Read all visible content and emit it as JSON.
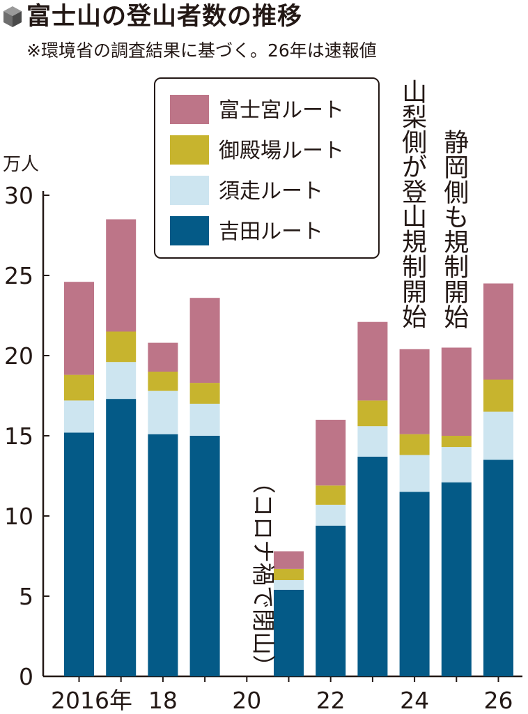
{
  "header": {
    "title": "富士山の登山者数の推移",
    "note": "※環境省の調査結果に基づく。26年は速報値"
  },
  "colors": {
    "fujinomiya": "#bd7588",
    "gotemba": "#c7b42e",
    "subashiri": "#cde5f0",
    "yoshida": "#045a87",
    "axis": "#231815"
  },
  "chart_data": {
    "type": "bar",
    "stacked": true,
    "categories": [
      "2016",
      "2017",
      "2018",
      "2019",
      "2020",
      "2021",
      "2022",
      "2023",
      "2024",
      "2025",
      "2026"
    ],
    "x_tick_labels": [
      "2016年",
      "",
      "18",
      "",
      "20",
      "",
      "22",
      "",
      "24",
      "",
      "26"
    ],
    "ylabel": "万人",
    "ylim": [
      0,
      30
    ],
    "yticks": [
      0,
      5,
      10,
      15,
      20,
      25,
      30
    ],
    "series": [
      {
        "name": "吉田ルート",
        "color_key": "yoshida",
        "values": [
          15.2,
          17.3,
          15.1,
          15.0,
          0,
          5.4,
          9.4,
          13.7,
          11.5,
          12.1,
          13.5
        ]
      },
      {
        "name": "須走ルート",
        "color_key": "subashiri",
        "values": [
          2.0,
          2.3,
          2.7,
          2.0,
          0,
          0.6,
          1.3,
          1.9,
          2.3,
          2.2,
          3.0
        ]
      },
      {
        "name": "御殿場ルート",
        "color_key": "gotemba",
        "values": [
          1.6,
          1.9,
          1.2,
          1.3,
          0,
          0.7,
          1.2,
          1.6,
          1.3,
          0.7,
          2.0
        ]
      },
      {
        "name": "富士宮ルート",
        "color_key": "fujinomiya",
        "values": [
          5.8,
          7.0,
          1.8,
          5.3,
          0,
          1.1,
          4.1,
          4.9,
          5.3,
          5.5,
          6.0
        ]
      }
    ],
    "legend_order": [
      "富士宮ルート",
      "御殿場ルート",
      "須走ルート",
      "吉田ルート"
    ],
    "legend_position": "top-left",
    "annotations": [
      {
        "category": "2020",
        "text": "（コロナ禍で閉山）"
      },
      {
        "category": "2024",
        "text": "山梨側が登山規制開始"
      },
      {
        "category": "2025",
        "text": "静岡側も規制開始"
      }
    ]
  }
}
